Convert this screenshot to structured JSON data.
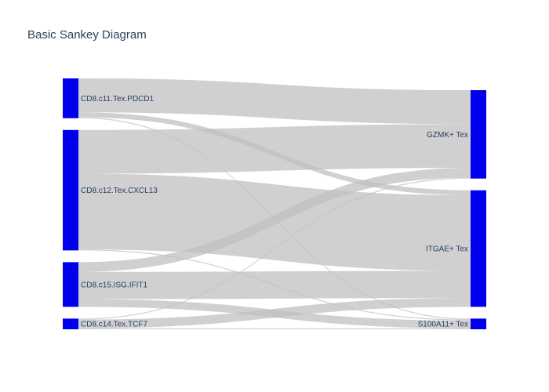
{
  "chart_data": {
    "type": "sankey",
    "title": "Basic Sankey Diagram",
    "node_color": "#0000ee",
    "link_color": "#c0c0c0",
    "sources": [
      "CD8.c11.Tex.PDCD1",
      "CD8.c12.Tex.CXCL13",
      "CD8.c15.ISG.IFIT1",
      "CD8.c14.Tex.TCF7"
    ],
    "targets": [
      "GZMK+ Tex",
      "ITGAE+ Tex",
      "S100A11+ Tex"
    ],
    "links": [
      {
        "source": "CD8.c11.Tex.PDCD1",
        "target": "GZMK+ Tex",
        "value": 35
      },
      {
        "source": "CD8.c11.Tex.PDCD1",
        "target": "ITGAE+ Tex",
        "value": 5
      },
      {
        "source": "CD8.c11.Tex.PDCD1",
        "target": "S100A11+ Tex",
        "value": 1
      },
      {
        "source": "CD8.c12.Tex.CXCL13",
        "target": "GZMK+ Tex",
        "value": 45
      },
      {
        "source": "CD8.c12.Tex.CXCL13",
        "target": "ITGAE+ Tex",
        "value": 78
      },
      {
        "source": "CD8.c12.Tex.CXCL13",
        "target": "S100A11+ Tex",
        "value": 1
      },
      {
        "source": "CD8.c15.ISG.IFIT1",
        "target": "GZMK+ Tex",
        "value": 10
      },
      {
        "source": "CD8.c15.ISG.IFIT1",
        "target": "ITGAE+ Tex",
        "value": 28
      },
      {
        "source": "CD8.c15.ISG.IFIT1",
        "target": "S100A11+ Tex",
        "value": 8
      },
      {
        "source": "CD8.c14.Tex.TCF7",
        "target": "GZMK+ Tex",
        "value": 1
      },
      {
        "source": "CD8.c14.Tex.TCF7",
        "target": "ITGAE+ Tex",
        "value": 9
      },
      {
        "source": "CD8.c14.Tex.TCF7",
        "target": "S100A11+ Tex",
        "value": 1
      }
    ]
  }
}
